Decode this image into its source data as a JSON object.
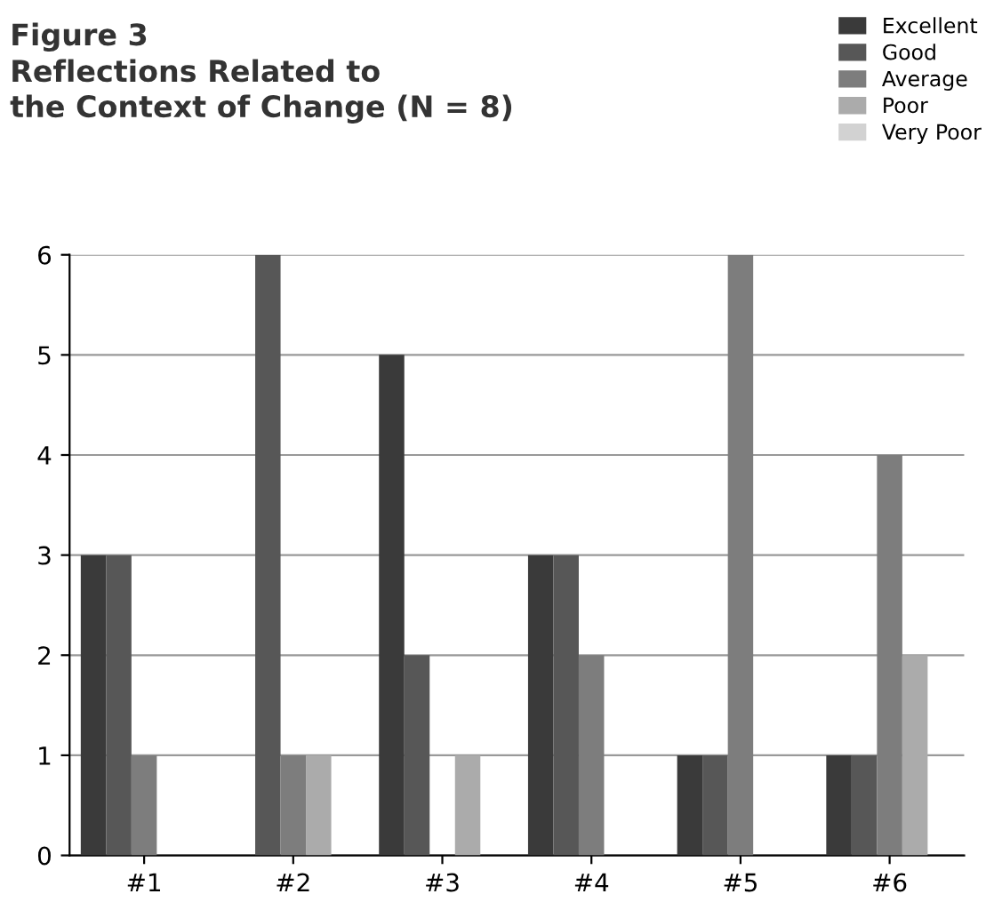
{
  "chart_data": {
    "type": "bar",
    "title": "Figure 3",
    "subtitle": "Reflections Related to\nthe Context of Change (N = 8)",
    "categories": [
      "#1",
      "#2",
      "#3",
      "#4",
      "#5",
      "#6"
    ],
    "series": [
      {
        "name": "Excellent",
        "color": "#3a3a3a",
        "values": [
          3,
          0,
          5,
          3,
          1,
          1
        ]
      },
      {
        "name": "Good",
        "color": "#575757",
        "values": [
          3,
          6,
          2,
          3,
          1,
          1
        ]
      },
      {
        "name": "Average",
        "color": "#7d7d7d",
        "values": [
          1,
          1,
          0,
          2,
          6,
          4
        ]
      },
      {
        "name": "Poor",
        "color": "#ababab",
        "values": [
          0,
          1,
          1,
          0,
          0,
          2
        ]
      },
      {
        "name": "Very Poor",
        "color": "#d2d2d2",
        "values": [
          0,
          0,
          0,
          0,
          0,
          0
        ]
      }
    ],
    "ylim": [
      0,
      6
    ],
    "yticks": [
      0,
      1,
      2,
      3,
      4,
      5,
      6
    ],
    "grid": "y",
    "legend": "top right"
  }
}
